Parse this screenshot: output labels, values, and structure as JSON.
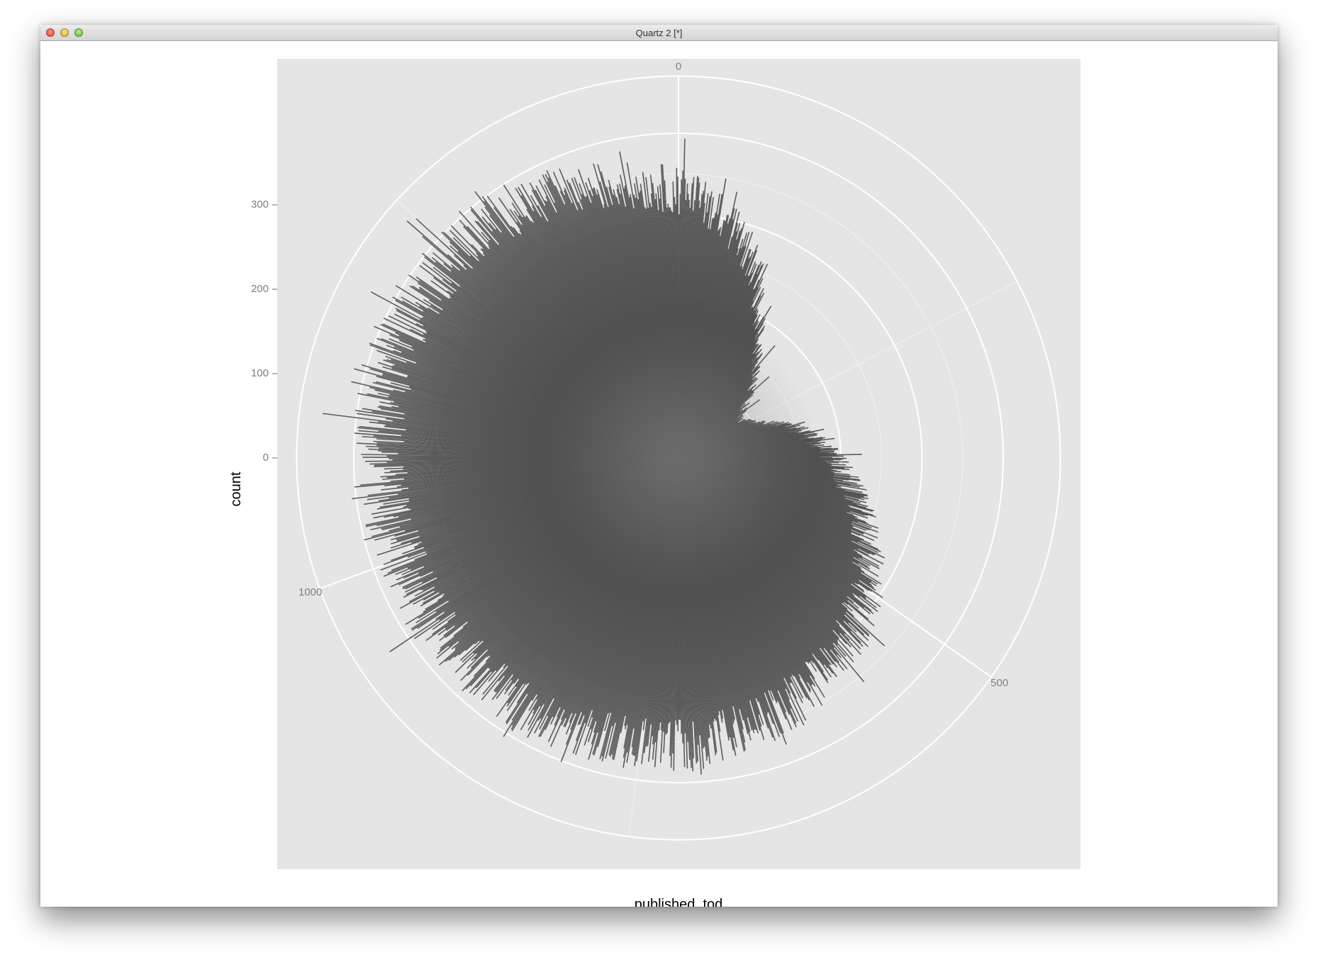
{
  "window": {
    "title": "Quartz 2 [*]"
  },
  "chart_data": {
    "type": "bar",
    "coord": "polar",
    "title": "",
    "xlabel": "published_tod",
    "ylabel": "count",
    "x_ticks": [
      "0",
      "500",
      "1000"
    ],
    "y_ticks": [
      "0",
      "100",
      "200",
      "300"
    ],
    "x_range": [
      0,
      1440
    ],
    "y_range": [
      -100,
      325
    ],
    "bar_color": "#4d4d4d",
    "panel_color": "#e5e5e5",
    "grid_color": "#ffffff",
    "grid": true,
    "legend": "none",
    "profile": [
      {
        "x": 0,
        "y": 230
      },
      {
        "x": 40,
        "y": 205
      },
      {
        "x": 80,
        "y": 160
      },
      {
        "x": 120,
        "y": 95
      },
      {
        "x": 160,
        "y": 45
      },
      {
        "x": 200,
        "y": 10
      },
      {
        "x": 230,
        "y": -15
      },
      {
        "x": 260,
        "y": 0
      },
      {
        "x": 300,
        "y": 45
      },
      {
        "x": 350,
        "y": 85
      },
      {
        "x": 400,
        "y": 115
      },
      {
        "x": 450,
        "y": 150
      },
      {
        "x": 500,
        "y": 185
      },
      {
        "x": 550,
        "y": 205
      },
      {
        "x": 600,
        "y": 225
      },
      {
        "x": 650,
        "y": 240
      },
      {
        "x": 700,
        "y": 250
      },
      {
        "x": 750,
        "y": 255
      },
      {
        "x": 800,
        "y": 258
      },
      {
        "x": 850,
        "y": 265
      },
      {
        "x": 900,
        "y": 260
      },
      {
        "x": 950,
        "y": 262
      },
      {
        "x": 1000,
        "y": 262
      },
      {
        "x": 1050,
        "y": 262
      },
      {
        "x": 1100,
        "y": 270
      },
      {
        "x": 1150,
        "y": 275
      },
      {
        "x": 1200,
        "y": 275
      },
      {
        "x": 1250,
        "y": 275
      },
      {
        "x": 1300,
        "y": 270
      },
      {
        "x": 1350,
        "y": 255
      },
      {
        "x": 1400,
        "y": 240
      },
      {
        "x": 1440,
        "y": 230
      }
    ]
  }
}
